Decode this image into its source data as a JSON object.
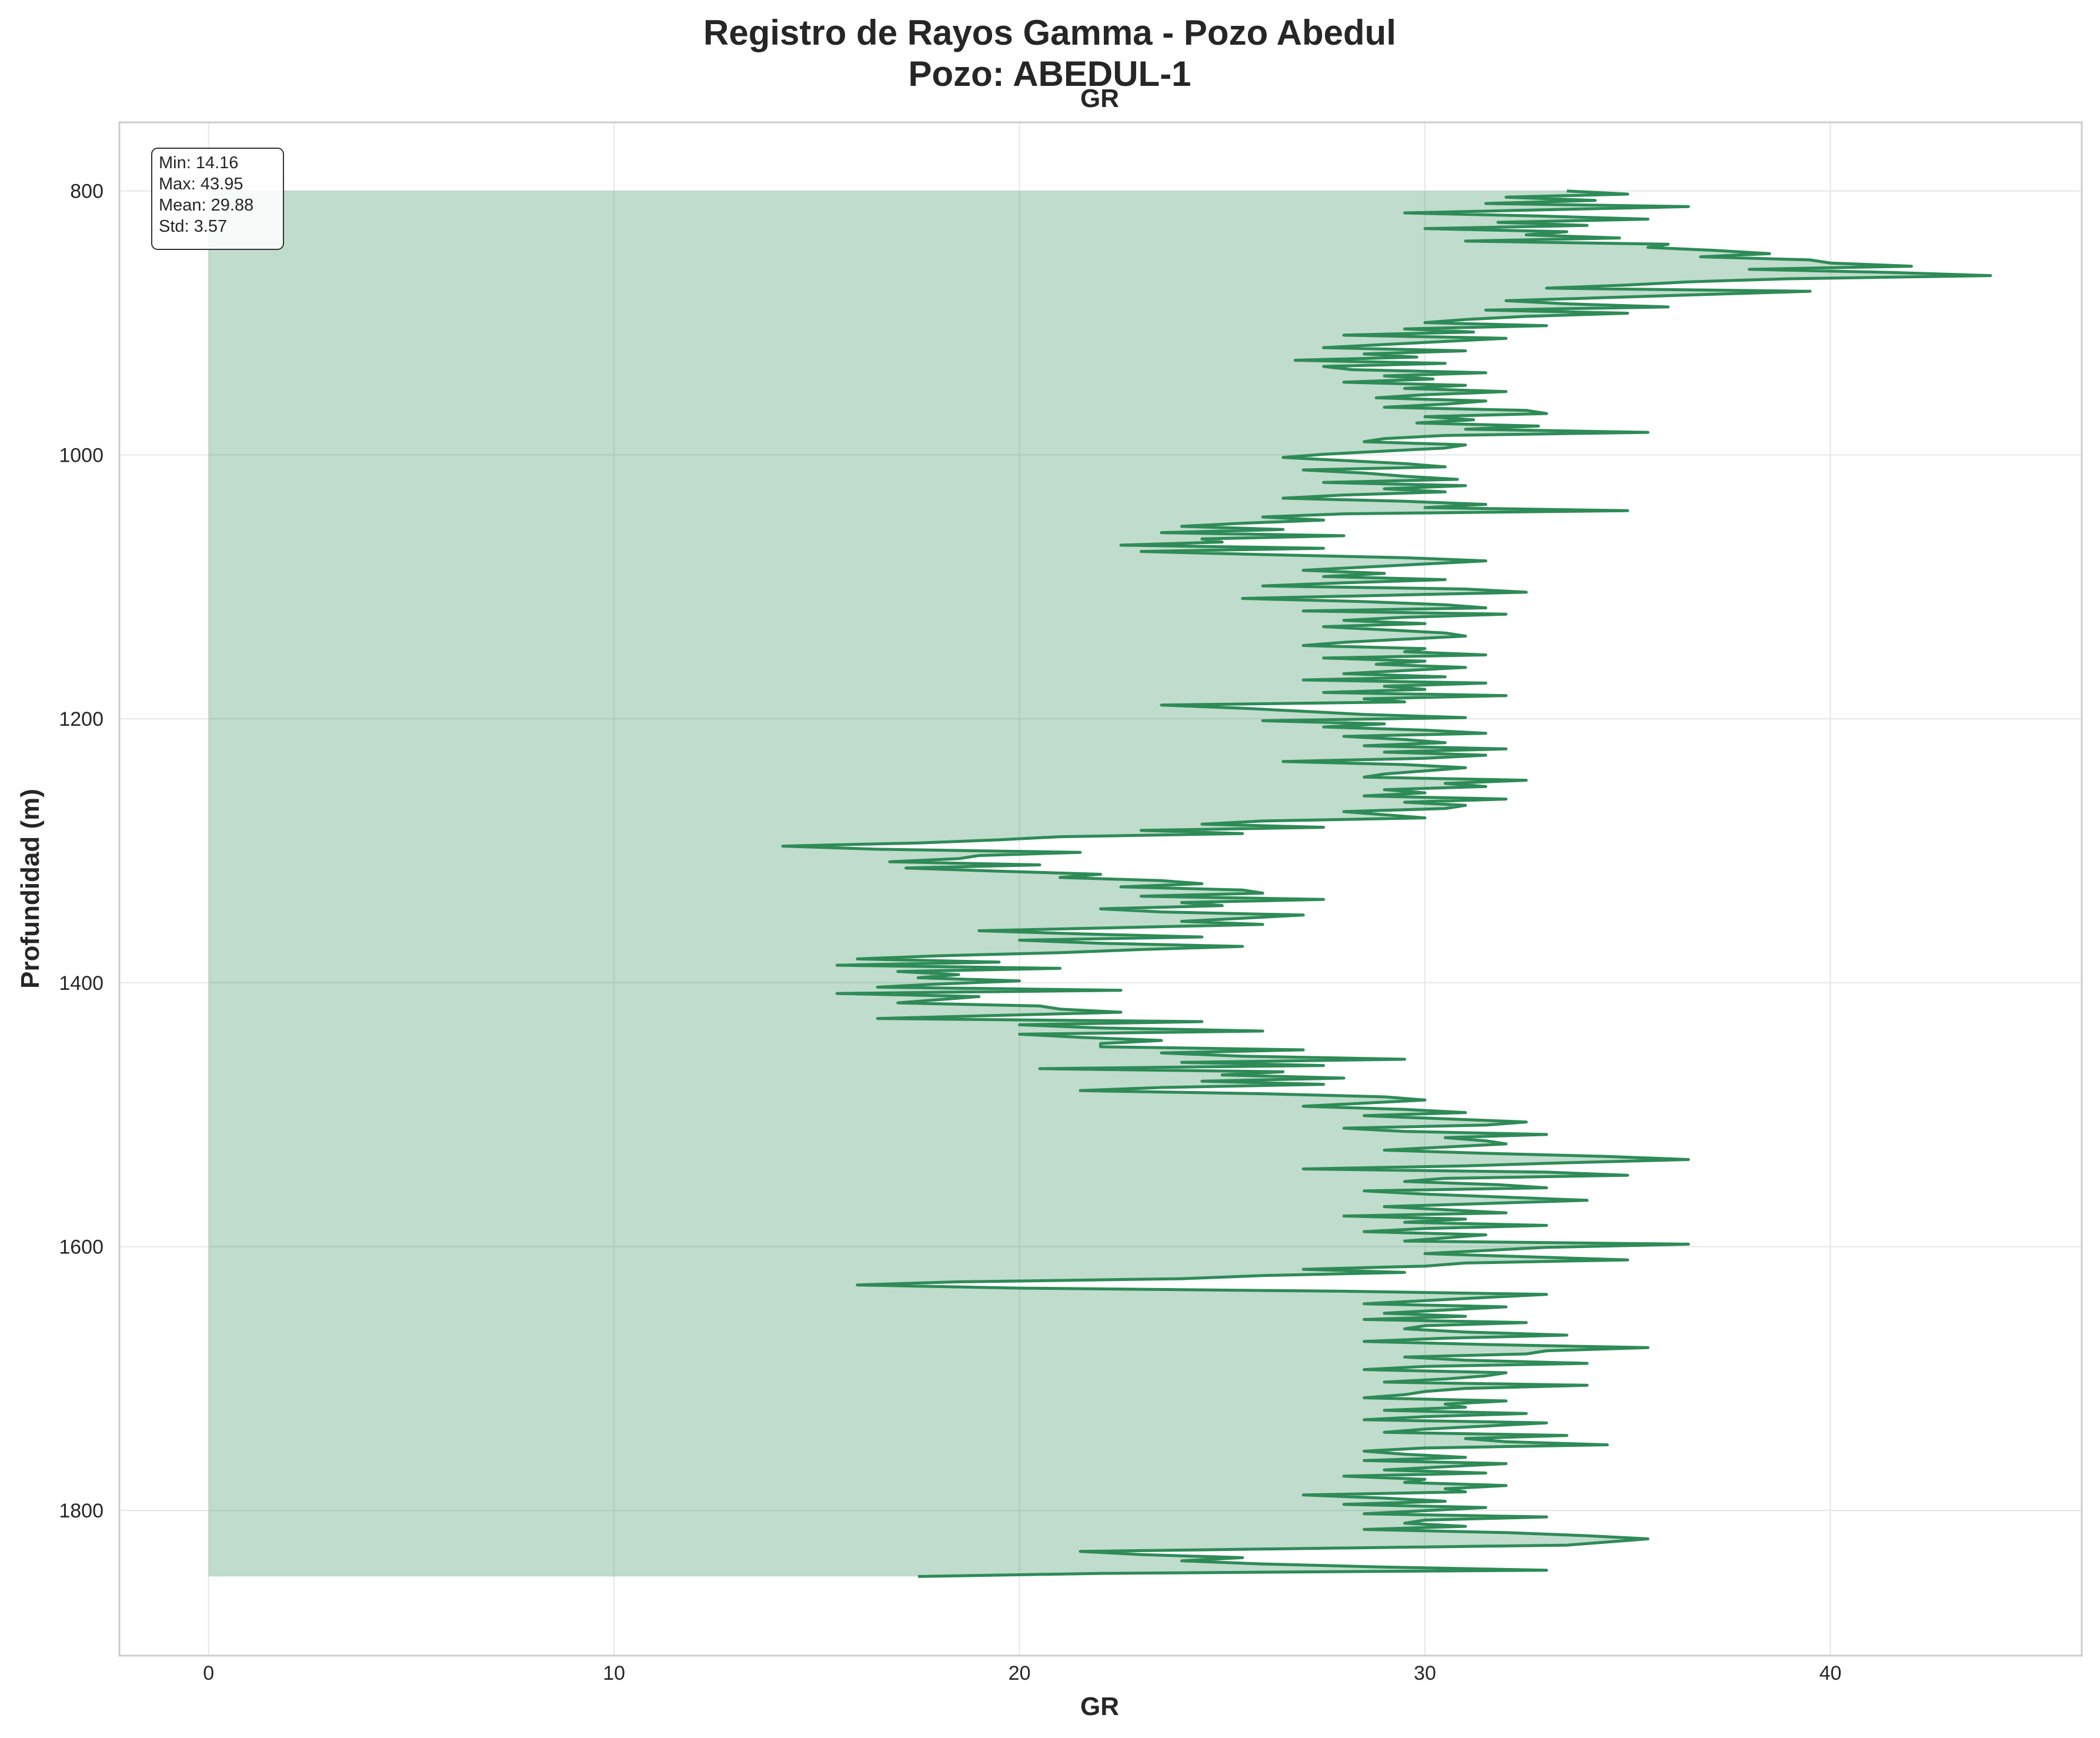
{
  "suptitle_line1": "Registro de Rayos Gamma - Pozo Abedul",
  "suptitle_line2": "Pozo: ABEDUL-1",
  "colors": {
    "line": "#2e8b57",
    "fill": "#2e8b57",
    "grid": "#e6e6e6",
    "frame": "#cccccc",
    "text": "#262626"
  },
  "stats": {
    "min": "Min: 14.16",
    "max": "Max: 43.95",
    "mean": "Mean: 29.88",
    "std": "Std: 3.57"
  },
  "chart_data": {
    "type": "line",
    "title": "GR",
    "xlabel": "GR",
    "ylabel": "Profundidad (m)",
    "xlim": [
      -2.2,
      46.2
    ],
    "ylim": [
      1910,
      748
    ],
    "y_inverted": true,
    "x_ticks": [
      0,
      10,
      20,
      30,
      40
    ],
    "x_tick_labels": [
      "0",
      "10",
      "20",
      "30",
      "40"
    ],
    "y_ticks": [
      800,
      1000,
      1200,
      1400,
      1600,
      1800
    ],
    "y_tick_labels": [
      "800",
      "1000",
      "1200",
      "1400",
      "1600",
      "1800"
    ],
    "grid": true,
    "fill_from_x": 0,
    "stats_box_location": "top-left",
    "series": [
      {
        "depth_start": 800,
        "depth_end": 1850,
        "depth_step": 2.5,
        "values": [
          33.5,
          35.0,
          32.0,
          34.2,
          31.5,
          36.5,
          33.0,
          29.5,
          32.8,
          35.5,
          31.8,
          34.0,
          30.0,
          33.5,
          32.5,
          34.8,
          31.0,
          36.0,
          35.5,
          37.2,
          38.5,
          36.8,
          39.5,
          40.0,
          42.0,
          38.0,
          41.5,
          43.95,
          39.0,
          36.5,
          35.0,
          33.0,
          39.5,
          37.0,
          34.5,
          32.0,
          33.5,
          36.0,
          31.5,
          35.0,
          32.5,
          31.0,
          30.0,
          33.0,
          29.5,
          31.2,
          28.0,
          32.0,
          30.5,
          29.0,
          27.5,
          31.0,
          28.5,
          29.8,
          26.8,
          30.5,
          27.5,
          28.2,
          31.5,
          29.0,
          30.2,
          28.0,
          31.0,
          29.5,
          32.0,
          30.0,
          28.8,
          31.5,
          30.5,
          29.0,
          32.5,
          33.0,
          30.0,
          31.2,
          29.8,
          32.8,
          31.0,
          35.5,
          30.5,
          29.0,
          28.5,
          31.0,
          30.5,
          29.0,
          27.5,
          26.5,
          28.0,
          29.5,
          30.5,
          27.0,
          28.5,
          29.5,
          30.8,
          27.5,
          31.0,
          29.0,
          30.5,
          28.0,
          26.5,
          29.5,
          31.5,
          30.0,
          35.0,
          28.0,
          26.0,
          27.5,
          25.5,
          24.0,
          26.5,
          23.5,
          28.0,
          24.5,
          25.0,
          22.5,
          27.5,
          23.0,
          26.0,
          29.5,
          31.5,
          30.0,
          28.5,
          27.0,
          29.0,
          27.5,
          30.5,
          28.0,
          26.0,
          31.0,
          32.5,
          29.0,
          25.5,
          28.5,
          30.5,
          31.5,
          27.0,
          32.0,
          29.5,
          28.0,
          30.0,
          27.5,
          29.0,
          30.5,
          31.0,
          29.5,
          28.0,
          27.0,
          30.0,
          29.5,
          31.5,
          27.5,
          30.0,
          28.8,
          31.0,
          29.5,
          28.0,
          30.5,
          27.0,
          31.5,
          29.0,
          30.0,
          27.5,
          32.0,
          28.5,
          29.5,
          23.5,
          25.5,
          27.0,
          28.5,
          31.0,
          26.0,
          29.0,
          27.5,
          30.0,
          31.5,
          28.0,
          29.5,
          30.5,
          28.5,
          32.0,
          29.0,
          31.5,
          30.0,
          26.5,
          29.5,
          31.0,
          30.0,
          29.0,
          28.5,
          32.5,
          30.5,
          31.5,
          29.0,
          30.0,
          28.5,
          32.0,
          29.5,
          31.0,
          30.5,
          28.0,
          29.0,
          30.0,
          26.0,
          24.5,
          27.5,
          23.0,
          25.5,
          21.0,
          19.5,
          17.5,
          14.16,
          16.5,
          21.5,
          19.0,
          18.5,
          16.8,
          20.5,
          17.2,
          19.5,
          22.0,
          21.0,
          23.5,
          24.5,
          22.5,
          25.5,
          26.0,
          23.0,
          27.5,
          24.0,
          25.0,
          22.0,
          23.5,
          27.0,
          25.5,
          24.0,
          26.0,
          22.5,
          19.0,
          21.5,
          24.5,
          20.0,
          22.0,
          25.5,
          23.0,
          21.0,
          18.0,
          16.0,
          19.5,
          15.5,
          21.0,
          17.0,
          18.5,
          17.5,
          20.0,
          18.0,
          16.5,
          22.5,
          15.5,
          19.0,
          18.0,
          17.0,
          20.5,
          21.0,
          22.5,
          19.5,
          16.5,
          24.5,
          20.0,
          22.0,
          26.0,
          20.0,
          21.5,
          23.5,
          22.0,
          22.0,
          27.0,
          23.5,
          25.5,
          29.5,
          24.0,
          27.5,
          20.5,
          26.5,
          25.0,
          28.0,
          24.5,
          27.5,
          23.5,
          21.5,
          26.0,
          29.0,
          30.0,
          28.5,
          27.0,
          29.5,
          31.0,
          28.5,
          30.5,
          32.5,
          31.5,
          28.0,
          29.5,
          33.0,
          30.5,
          31.5,
          32.0,
          30.5,
          29.0,
          31.5,
          34.5,
          36.5,
          33.5,
          31.0,
          27.0,
          33.0,
          35.0,
          30.5,
          29.5,
          31.8,
          33.0,
          28.5,
          30.0,
          32.0,
          34.0,
          31.5,
          29.0,
          30.5,
          32.0,
          28.0,
          31.0,
          29.5,
          33.0,
          30.0,
          28.5,
          31.5,
          30.5,
          29.5,
          36.5,
          33.0,
          31.5,
          30.0,
          32.5,
          35.0,
          31.0,
          30.0,
          27.0,
          29.5,
          26.0,
          24.0,
          18.5,
          16.0,
          20.0,
          28.0,
          33.0,
          31.5,
          30.0,
          28.5,
          32.0,
          30.5,
          29.0,
          31.0,
          28.5,
          32.5,
          30.0,
          29.5,
          31.0,
          33.5,
          30.5,
          28.5,
          31.5,
          35.5,
          33.0,
          32.5,
          29.5,
          31.0,
          34.0,
          30.0,
          28.5,
          32.0,
          31.5,
          30.5,
          29.0,
          34.0,
          31.0,
          30.0,
          29.5,
          28.5,
          32.0,
          30.5,
          31.0,
          29.0,
          32.5,
          30.0,
          28.5,
          33.0,
          31.5,
          30.0,
          29.0,
          33.5,
          31.0,
          32.0,
          34.5,
          30.0,
          28.5,
          29.5,
          31.0,
          28.5,
          32.0,
          30.5,
          29.0,
          31.5,
          28.0,
          30.0,
          29.5,
          32.0,
          30.5,
          31.0,
          27.0,
          29.0,
          30.5,
          28.0,
          31.5,
          30.0,
          28.5,
          33.0,
          30.0,
          29.5,
          31.0,
          28.5,
          32.0,
          34.0,
          35.5,
          34.5,
          33.5,
          27.5,
          21.5,
          23.0,
          25.5,
          24.0,
          26.0,
          29.0,
          33.0,
          22.0,
          17.5
        ]
      }
    ]
  }
}
